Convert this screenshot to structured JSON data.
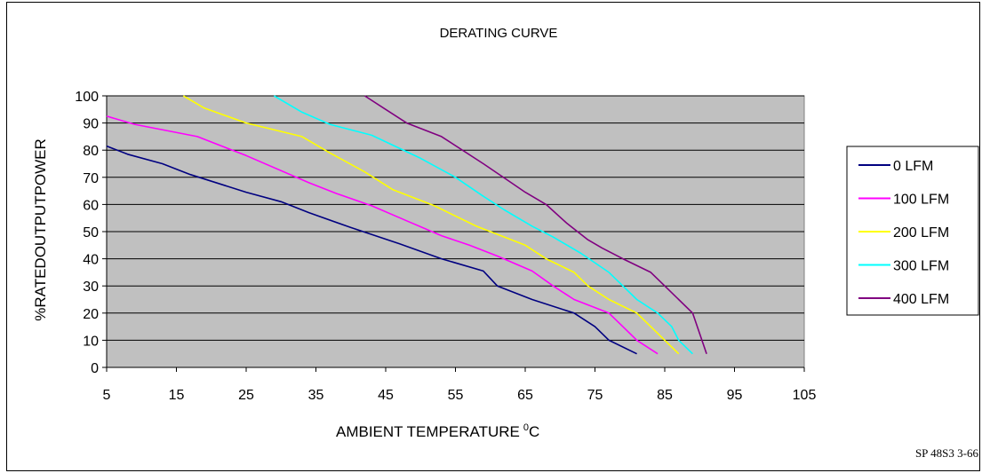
{
  "chart_data": {
    "type": "line",
    "title": "DERATING CURVE",
    "xlabel": "AMBIENT TEMPERATURE",
    "xlabel_sup": "0",
    "xlabel_unit": "C",
    "ylabel": "%RATEDOUTPUTPOWER",
    "xlim": [
      5,
      105
    ],
    "ylim": [
      0,
      100
    ],
    "xticks": [
      "5",
      "15",
      "25",
      "35",
      "45",
      "55",
      "65",
      "75",
      "85",
      "95",
      "105"
    ],
    "yticks": [
      "0",
      "10",
      "20",
      "30",
      "40",
      "50",
      "60",
      "70",
      "80",
      "90",
      "100"
    ],
    "grid": true,
    "legend_position": "right",
    "plot_background": "#c0c0c0",
    "series": [
      {
        "name": "0 LFM",
        "color": "#000080",
        "points": [
          [
            5,
            81.5
          ],
          [
            8,
            78.5
          ],
          [
            13,
            75
          ],
          [
            17,
            71
          ],
          [
            25,
            64.5
          ],
          [
            30,
            61
          ],
          [
            34,
            57
          ],
          [
            40,
            51.5
          ],
          [
            47,
            45.5
          ],
          [
            53,
            40
          ],
          [
            59,
            35.5
          ],
          [
            61,
            30
          ],
          [
            66,
            25
          ],
          [
            72,
            20
          ],
          [
            75,
            15
          ],
          [
            77,
            10
          ],
          [
            81,
            5
          ]
        ]
      },
      {
        "name": "100 LFM",
        "color": "#ff00ff",
        "points": [
          [
            5,
            92.5
          ],
          [
            9,
            89.5
          ],
          [
            18,
            85
          ],
          [
            25,
            78
          ],
          [
            34,
            68
          ],
          [
            38,
            64
          ],
          [
            43,
            59.5
          ],
          [
            48,
            54
          ],
          [
            53,
            48.5
          ],
          [
            57,
            45
          ],
          [
            61,
            41
          ],
          [
            66,
            35.5
          ],
          [
            69,
            30
          ],
          [
            72,
            25
          ],
          [
            77,
            20
          ],
          [
            79,
            15
          ],
          [
            81,
            10
          ],
          [
            84,
            5
          ]
        ]
      },
      {
        "name": "200 LFM",
        "color": "#ffff00",
        "points": [
          [
            16,
            100
          ],
          [
            19,
            95.5
          ],
          [
            25,
            90
          ],
          [
            33,
            85
          ],
          [
            37,
            79
          ],
          [
            42,
            72
          ],
          [
            46,
            65.5
          ],
          [
            52,
            59.5
          ],
          [
            58,
            52
          ],
          [
            65,
            45
          ],
          [
            68,
            40
          ],
          [
            72,
            35
          ],
          [
            74,
            30
          ],
          [
            77,
            25
          ],
          [
            81,
            20
          ],
          [
            83,
            15
          ],
          [
            85,
            10
          ],
          [
            87,
            5
          ]
        ]
      },
      {
        "name": "300 LFM",
        "color": "#00ffff",
        "points": [
          [
            29,
            100
          ],
          [
            33,
            94
          ],
          [
            37,
            89.5
          ],
          [
            43,
            85.5
          ],
          [
            50,
            77
          ],
          [
            55,
            70
          ],
          [
            59,
            63
          ],
          [
            62,
            58
          ],
          [
            66,
            52
          ],
          [
            69,
            48
          ],
          [
            73,
            42
          ],
          [
            77,
            35
          ],
          [
            79,
            30
          ],
          [
            81,
            25
          ],
          [
            84,
            20
          ],
          [
            86,
            15
          ],
          [
            87,
            10
          ],
          [
            89,
            5
          ]
        ]
      },
      {
        "name": "400 LFM",
        "color": "#800080",
        "points": [
          [
            42,
            100
          ],
          [
            45,
            95
          ],
          [
            48,
            90
          ],
          [
            53,
            85
          ],
          [
            59,
            75
          ],
          [
            63,
            68
          ],
          [
            65,
            64.5
          ],
          [
            68,
            60
          ],
          [
            71,
            53
          ],
          [
            74,
            47
          ],
          [
            76,
            44
          ],
          [
            79,
            40
          ],
          [
            83,
            35
          ],
          [
            85,
            30
          ],
          [
            87,
            25
          ],
          [
            89,
            20
          ],
          [
            91,
            5
          ]
        ]
      }
    ]
  },
  "footer_code": "SP 48S3 3-66"
}
